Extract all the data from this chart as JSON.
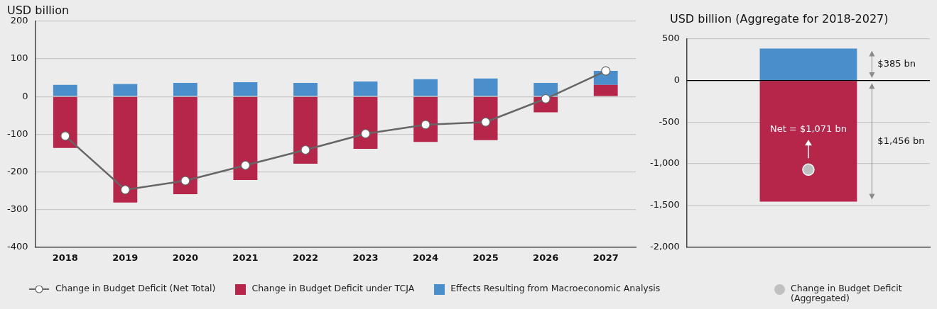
{
  "chart_data": [
    {
      "type": "bar",
      "ylabel": "USD billion",
      "categories": [
        "2018",
        "2019",
        "2020",
        "2021",
        "2022",
        "2023",
        "2024",
        "2025",
        "2026",
        "2027"
      ],
      "series": [
        {
          "name": "Change in Budget Deficit (Net Total)",
          "type": "line",
          "color": "#666666",
          "values": [
            -105,
            -248,
            -224,
            -183,
            -142,
            -99,
            -75,
            -68,
            -6,
            68
          ]
        },
        {
          "name": "Change in Budget Deficit under TCJA",
          "color": "#b5264a",
          "values": [
            -137,
            -282,
            -260,
            -222,
            -179,
            -139,
            -121,
            -116,
            -42,
            31
          ]
        },
        {
          "name": "Effects Resulting from Macroeconomic Analysis",
          "color": "#4a8ecb",
          "values": [
            31,
            33,
            36,
            38,
            36,
            40,
            46,
            48,
            36,
            37
          ]
        }
      ],
      "stacked": true,
      "ylim": [
        -400,
        200
      ],
      "yticks": [
        -400,
        -300,
        -200,
        -100,
        0,
        100,
        200
      ],
      "grid": "y",
      "legend": "bottom",
      "marker": "circle"
    },
    {
      "type": "bar",
      "ylabel": "USD billion (Aggregate for 2018-2027)",
      "categories": [
        null
      ],
      "series": [
        {
          "color": "#b5264a",
          "values": [
            -1456
          ]
        },
        {
          "color": "#4a8ecb",
          "values": [
            385
          ]
        },
        {
          "name": "Change in Budget Deficit (Aggregated)",
          "type": "scatter",
          "color": "#c0c0c0",
          "values": [
            -1071
          ]
        }
      ],
      "stacked": true,
      "ylim": [
        -2000,
        500
      ],
      "yticks": [
        {
          "value": -2000,
          "label": "-2,000"
        },
        {
          "value": -1500,
          "label": "-1,500"
        },
        {
          "value": -1000,
          "label": "-1,000"
        },
        -500,
        0,
        500
      ],
      "grid": "y",
      "legend": "bottom",
      "ref_lines": [
        {
          "axis": "y",
          "value": 0,
          "color": "#000000"
        }
      ],
      "annotations": [
        "$1,456 bn",
        "$385 bn",
        "Net = $1,071 bn"
      ]
    }
  ]
}
